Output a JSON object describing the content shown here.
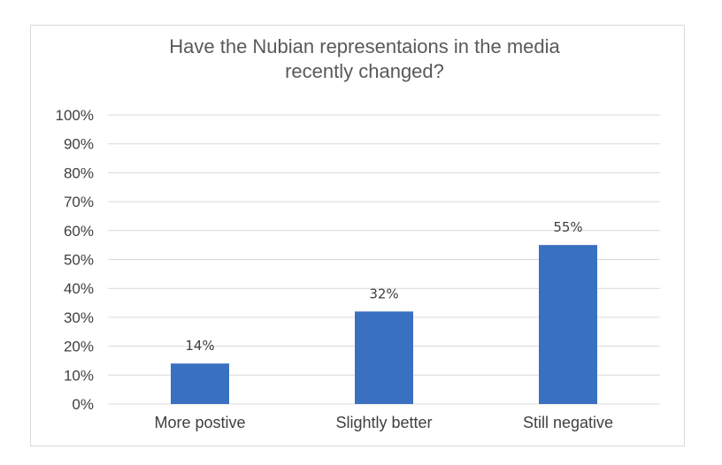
{
  "chart_data": {
    "type": "bar",
    "title_lines": [
      "Have the Nubian representaions in the media",
      "recently changed?"
    ],
    "categories": [
      "More postive",
      "Slightly better",
      "Still negative"
    ],
    "values": [
      14,
      32,
      55
    ],
    "data_labels": [
      "14%",
      "32%",
      "55%"
    ],
    "ylim": [
      0,
      100
    ],
    "yticks": [
      0,
      10,
      20,
      30,
      40,
      50,
      60,
      70,
      80,
      90,
      100
    ],
    "ytick_labels": [
      "0%",
      "10%",
      "20%",
      "30%",
      "40%",
      "50%",
      "60%",
      "70%",
      "80%",
      "90%",
      "100%"
    ],
    "grid": true,
    "legend": "none",
    "bar_color": "#3a70c0"
  }
}
